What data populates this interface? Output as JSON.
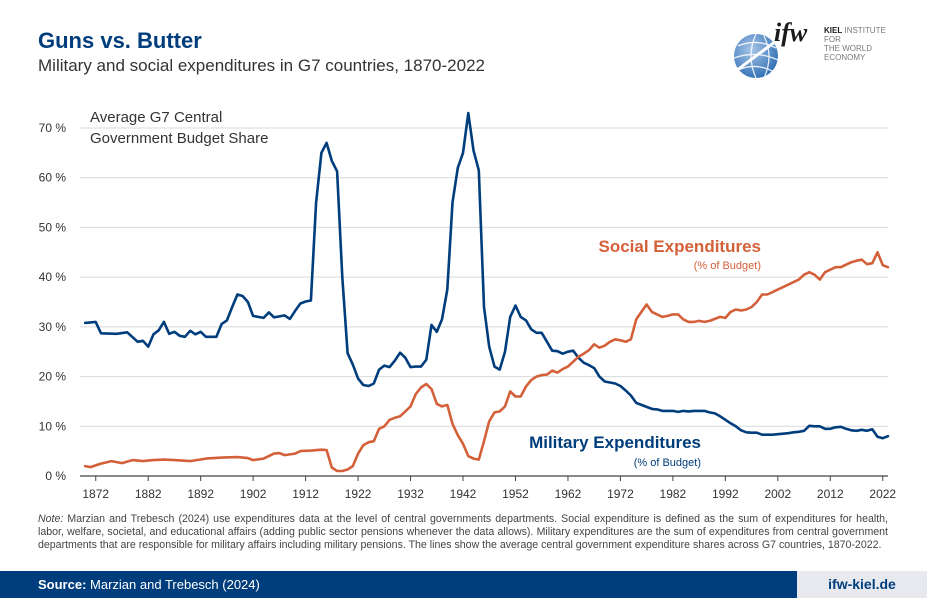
{
  "title": "Guns vs. Butter",
  "subtitle": "Military and social expenditures in G7 countries, 1870-2022",
  "logo": {
    "word": "ifw",
    "kiel": "KIEL",
    "line1": "INSTITUTE FOR",
    "line2": "THE WORLD ECONOMY",
    "icon": "globe-icon"
  },
  "note": {
    "label": "Note:",
    "text": "Marzian and Trebesch (2024) use expenditures data at the level of central governments departments. Social expenditure is defined as the sum of expenditures for health, labor, welfare, societal, and educational affairs (adding public sector pensions whenever the data allows). Military expenditures are the sum of expenditures from central government departments that are responsible for military affairs including military pensions. The lines show the average central government expenditure shares across G7 countries, 1870-2022."
  },
  "footer": {
    "source_label": "Source:",
    "source_text": "Marzian and Trebesch (2024)",
    "url": "ifw-kiel.de"
  },
  "colors": {
    "military": "#003d7c",
    "social": "#d4603a",
    "brand": "#003d7c"
  },
  "chart_data": {
    "type": "line",
    "title": "Average G7 Central Government Budget Share",
    "title_lines": [
      "Average G7 Central",
      "Government Budget Share"
    ],
    "ylim": [
      0,
      70
    ],
    "xlim": [
      1869,
      2023
    ],
    "yticks": [
      "0 %",
      "10 %",
      "20 %",
      "30 %",
      "40 %",
      "50 %",
      "60 %",
      "70 %"
    ],
    "xticks": [
      "1872",
      "1882",
      "1892",
      "1902",
      "1912",
      "1922",
      "1932",
      "1942",
      "1952",
      "1962",
      "1972",
      "1982",
      "1992",
      "2002",
      "2012",
      "2022"
    ],
    "grid": true,
    "series": [
      {
        "name": "Military Expenditures",
        "sub": "(% of Budget)",
        "color": "#003d7c",
        "points": [
          [
            1870,
            30.8
          ],
          [
            1872,
            31
          ],
          [
            1873,
            28.7
          ],
          [
            1876,
            28.6
          ],
          [
            1878,
            28.9
          ],
          [
            1880,
            27
          ],
          [
            1881,
            27.2
          ],
          [
            1882,
            26
          ],
          [
            1883,
            28.5
          ],
          [
            1884,
            29.3
          ],
          [
            1885,
            31
          ],
          [
            1886,
            28.6
          ],
          [
            1887,
            29
          ],
          [
            1888,
            28.2
          ],
          [
            1889,
            28
          ],
          [
            1890,
            29.2
          ],
          [
            1891,
            28.5
          ],
          [
            1892,
            29
          ],
          [
            1893,
            28
          ],
          [
            1895,
            28
          ],
          [
            1896,
            30.6
          ],
          [
            1897,
            31.3
          ],
          [
            1898,
            34
          ],
          [
            1899,
            36.5
          ],
          [
            1900,
            36.2
          ],
          [
            1901,
            35
          ],
          [
            1902,
            32.2
          ],
          [
            1904,
            31.8
          ],
          [
            1905,
            32.9
          ],
          [
            1906,
            31.9
          ],
          [
            1908,
            32.3
          ],
          [
            1909,
            31.6
          ],
          [
            1910,
            33.2
          ],
          [
            1911,
            34.7
          ],
          [
            1912,
            35.1
          ],
          [
            1913,
            35.3
          ],
          [
            1914,
            55
          ],
          [
            1915,
            65
          ],
          [
            1916,
            67
          ],
          [
            1917,
            63.4
          ],
          [
            1918,
            61.3
          ],
          [
            1919,
            40
          ],
          [
            1920,
            24.7
          ],
          [
            1921,
            22.4
          ],
          [
            1922,
            19.6
          ],
          [
            1923,
            18.3
          ],
          [
            1924,
            18.1
          ],
          [
            1925,
            18.6
          ],
          [
            1926,
            21.4
          ],
          [
            1927,
            22.2
          ],
          [
            1928,
            21.9
          ],
          [
            1929,
            23.2
          ],
          [
            1930,
            24.8
          ],
          [
            1931,
            23.8
          ],
          [
            1932,
            21.9
          ],
          [
            1933,
            22
          ],
          [
            1934,
            22
          ],
          [
            1935,
            23.4
          ],
          [
            1936,
            30.4
          ],
          [
            1937,
            29
          ],
          [
            1938,
            31.5
          ],
          [
            1939,
            37.5
          ],
          [
            1940,
            55
          ],
          [
            1941,
            62
          ],
          [
            1942,
            65
          ],
          [
            1943,
            73
          ],
          [
            1944,
            65.5
          ],
          [
            1945,
            61.5
          ],
          [
            1946,
            34
          ],
          [
            1947,
            26
          ],
          [
            1948,
            22
          ],
          [
            1949,
            21.4
          ],
          [
            1950,
            25
          ],
          [
            1951,
            32
          ],
          [
            1952,
            34.3
          ],
          [
            1953,
            32
          ],
          [
            1954,
            31.3
          ],
          [
            1955,
            29.5
          ],
          [
            1956,
            28.8
          ],
          [
            1957,
            28.8
          ],
          [
            1958,
            27
          ],
          [
            1959,
            25.2
          ],
          [
            1960,
            25.1
          ],
          [
            1961,
            24.6
          ],
          [
            1962,
            25
          ],
          [
            1963,
            25.2
          ],
          [
            1964,
            23.8
          ],
          [
            1965,
            22.8
          ],
          [
            1966,
            22.3
          ],
          [
            1967,
            21.7
          ],
          [
            1968,
            20
          ],
          [
            1969,
            19
          ],
          [
            1970,
            18.8
          ],
          [
            1971,
            18.6
          ],
          [
            1972,
            18.1
          ],
          [
            1973,
            17.2
          ],
          [
            1974,
            16.2
          ],
          [
            1975,
            14.7
          ],
          [
            1976,
            14.3
          ],
          [
            1977,
            13.9
          ],
          [
            1978,
            13.5
          ],
          [
            1979,
            13.4
          ],
          [
            1980,
            13.1
          ],
          [
            1981,
            13.1
          ],
          [
            1982,
            13.1
          ],
          [
            1983,
            12.9
          ],
          [
            1984,
            13.1
          ],
          [
            1985,
            13
          ],
          [
            1986,
            13.1
          ],
          [
            1987,
            13.1
          ],
          [
            1988,
            13.1
          ],
          [
            1989,
            12.8
          ],
          [
            1990,
            12.6
          ],
          [
            1991,
            12
          ],
          [
            1992,
            11.3
          ],
          [
            1993,
            10.6
          ],
          [
            1994,
            10
          ],
          [
            1995,
            9.2
          ],
          [
            1996,
            8.8
          ],
          [
            1997,
            8.7
          ],
          [
            1998,
            8.7
          ],
          [
            1999,
            8.3
          ],
          [
            2000,
            8.3
          ],
          [
            2001,
            8.3
          ],
          [
            2002,
            8.4
          ],
          [
            2003,
            8.5
          ],
          [
            2004,
            8.6
          ],
          [
            2005,
            8.8
          ],
          [
            2006,
            8.9
          ],
          [
            2007,
            9.1
          ],
          [
            2008,
            10.1
          ],
          [
            2009,
            10
          ],
          [
            2010,
            10
          ],
          [
            2011,
            9.5
          ],
          [
            2012,
            9.5
          ],
          [
            2013,
            9.8
          ],
          [
            2014,
            9.9
          ],
          [
            2015,
            9.5
          ],
          [
            2016,
            9.2
          ],
          [
            2017,
            9.1
          ],
          [
            2018,
            9.3
          ],
          [
            2019,
            9.1
          ],
          [
            2020,
            9.4
          ],
          [
            2021,
            7.9
          ],
          [
            2022,
            7.6
          ],
          [
            2023,
            8
          ]
        ]
      },
      {
        "name": "Social Expenditures",
        "sub": "(% of Budget)",
        "color": "#d4603a",
        "points": [
          [
            1870,
            2
          ],
          [
            1871,
            1.8
          ],
          [
            1873,
            2.5
          ],
          [
            1875,
            3
          ],
          [
            1877,
            2.6
          ],
          [
            1879,
            3.2
          ],
          [
            1881,
            3
          ],
          [
            1883,
            3.2
          ],
          [
            1885,
            3.3
          ],
          [
            1887,
            3.2
          ],
          [
            1890,
            3
          ],
          [
            1893,
            3.5
          ],
          [
            1896,
            3.7
          ],
          [
            1899,
            3.8
          ],
          [
            1901,
            3.6
          ],
          [
            1902,
            3.2
          ],
          [
            1904,
            3.5
          ],
          [
            1906,
            4.5
          ],
          [
            1907,
            4.6
          ],
          [
            1908,
            4.2
          ],
          [
            1910,
            4.5
          ],
          [
            1911,
            5
          ],
          [
            1913,
            5.1
          ],
          [
            1915,
            5.3
          ],
          [
            1916,
            5.2
          ],
          [
            1917,
            1.7
          ],
          [
            1918,
            1
          ],
          [
            1919,
            1
          ],
          [
            1920,
            1.3
          ],
          [
            1921,
            2
          ],
          [
            1922,
            4.5
          ],
          [
            1923,
            6.2
          ],
          [
            1924,
            6.8
          ],
          [
            1925,
            7
          ],
          [
            1926,
            9.5
          ],
          [
            1927,
            10
          ],
          [
            1928,
            11.3
          ],
          [
            1929,
            11.7
          ],
          [
            1930,
            12
          ],
          [
            1931,
            13
          ],
          [
            1932,
            14
          ],
          [
            1933,
            16.5
          ],
          [
            1934,
            17.8
          ],
          [
            1935,
            18.5
          ],
          [
            1936,
            17.5
          ],
          [
            1937,
            14.5
          ],
          [
            1938,
            14
          ],
          [
            1939,
            14.3
          ],
          [
            1940,
            10.5
          ],
          [
            1941,
            8.2
          ],
          [
            1942,
            6.5
          ],
          [
            1943,
            4
          ],
          [
            1944,
            3.5
          ],
          [
            1945,
            3.3
          ],
          [
            1946,
            7
          ],
          [
            1947,
            11
          ],
          [
            1948,
            12.8
          ],
          [
            1949,
            13
          ],
          [
            1950,
            14
          ],
          [
            1951,
            17
          ],
          [
            1952,
            16
          ],
          [
            1953,
            16
          ],
          [
            1954,
            18
          ],
          [
            1955,
            19.3
          ],
          [
            1956,
            20
          ],
          [
            1957,
            20.3
          ],
          [
            1958,
            20.4
          ],
          [
            1959,
            21.2
          ],
          [
            1960,
            20.8
          ],
          [
            1961,
            21.5
          ],
          [
            1962,
            22
          ],
          [
            1963,
            23
          ],
          [
            1964,
            24
          ],
          [
            1965,
            24.6
          ],
          [
            1966,
            25.3
          ],
          [
            1967,
            26.5
          ],
          [
            1968,
            25.8
          ],
          [
            1969,
            26.2
          ],
          [
            1970,
            27
          ],
          [
            1971,
            27.5
          ],
          [
            1972,
            27.3
          ],
          [
            1973,
            27
          ],
          [
            1974,
            27.5
          ],
          [
            1975,
            31.5
          ],
          [
            1976,
            33
          ],
          [
            1977,
            34.5
          ],
          [
            1978,
            33
          ],
          [
            1979,
            32.5
          ],
          [
            1980,
            32
          ],
          [
            1981,
            32.2
          ],
          [
            1982,
            32.5
          ],
          [
            1983,
            32.5
          ],
          [
            1984,
            31.5
          ],
          [
            1985,
            31
          ],
          [
            1986,
            31
          ],
          [
            1987,
            31.2
          ],
          [
            1988,
            31
          ],
          [
            1989,
            31.2
          ],
          [
            1990,
            31.6
          ],
          [
            1991,
            32
          ],
          [
            1992,
            31.8
          ],
          [
            1993,
            33
          ],
          [
            1994,
            33.5
          ],
          [
            1995,
            33.3
          ],
          [
            1996,
            33.5
          ],
          [
            1997,
            34
          ],
          [
            1998,
            35
          ],
          [
            1999,
            36.5
          ],
          [
            2000,
            36.5
          ],
          [
            2001,
            37
          ],
          [
            2002,
            37.5
          ],
          [
            2003,
            38
          ],
          [
            2004,
            38.5
          ],
          [
            2005,
            39
          ],
          [
            2006,
            39.5
          ],
          [
            2007,
            40.5
          ],
          [
            2008,
            41
          ],
          [
            2009,
            40.5
          ],
          [
            2010,
            39.5
          ],
          [
            2011,
            41
          ],
          [
            2012,
            41.5
          ],
          [
            2013,
            42
          ],
          [
            2014,
            42
          ],
          [
            2015,
            42.5
          ],
          [
            2016,
            43
          ],
          [
            2017,
            43.3
          ],
          [
            2018,
            43.5
          ],
          [
            2019,
            42.6
          ],
          [
            2020,
            42.8
          ],
          [
            2021,
            45
          ],
          [
            2022,
            42.4
          ],
          [
            2023,
            42
          ]
        ]
      }
    ]
  }
}
